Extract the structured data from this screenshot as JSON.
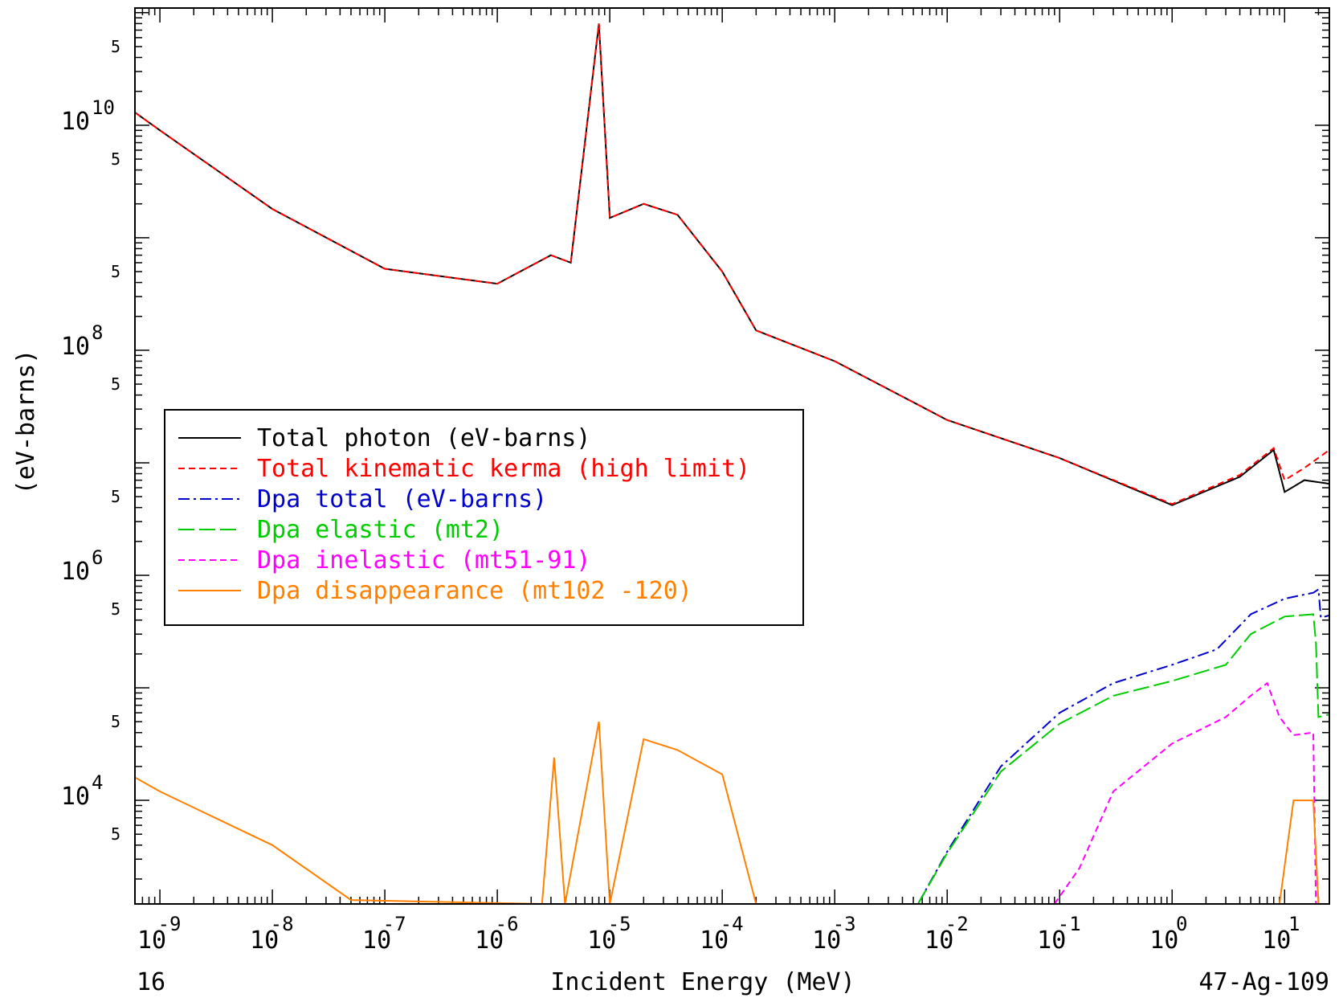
{
  "chart_data": {
    "type": "line",
    "title": "",
    "xlabel": "Incident Energy (MeV)",
    "ylabel": "(eV-barns)",
    "footer_left": "16",
    "footer_right": "47-Ag-109",
    "x_scale": "log",
    "y_scale": "log",
    "xlim": [
      6e-10,
      25
    ],
    "ylim": [
      1200,
      110000000000.0
    ],
    "x_ticks": [
      {
        "base": "10",
        "exp": "-9"
      },
      {
        "base": "10",
        "exp": "-8"
      },
      {
        "base": "10",
        "exp": "-7"
      },
      {
        "base": "10",
        "exp": "-6"
      },
      {
        "base": "10",
        "exp": "-5"
      },
      {
        "base": "10",
        "exp": "-4"
      },
      {
        "base": "10",
        "exp": "-3"
      },
      {
        "base": "10",
        "exp": "-2"
      },
      {
        "base": "10",
        "exp": "-1"
      },
      {
        "base": "10",
        "exp": "0"
      },
      {
        "base": "10",
        "exp": "1"
      }
    ],
    "y_ticks": [
      {
        "base": "10",
        "exp": "10"
      },
      {
        "base": "10",
        "exp": "8"
      },
      {
        "base": "10",
        "exp": "6"
      },
      {
        "base": "10",
        "exp": "4"
      }
    ],
    "y_minor_label": "5",
    "legend_position": "center-left",
    "series": [
      {
        "name": "Total photon (eV-barns)",
        "color": "#000000",
        "dash": "solid",
        "points": [
          [
            6e-10,
            13000000000.0
          ],
          [
            1e-09,
            9000000000.0
          ],
          [
            1e-08,
            1800000000.0
          ],
          [
            1e-07,
            530000000.0
          ],
          [
            1e-06,
            390000000.0
          ],
          [
            3e-06,
            700000000.0
          ],
          [
            4.5e-06,
            600000000.0
          ],
          [
            8e-06,
            80000000000.0
          ],
          [
            1e-05,
            1500000000.0
          ],
          [
            2e-05,
            2000000000.0
          ],
          [
            4e-05,
            1600000000.0
          ],
          [
            0.0001,
            500000000.0
          ],
          [
            0.0002,
            150000000.0
          ],
          [
            0.001,
            80000000.0
          ],
          [
            0.01,
            24000000.0
          ],
          [
            0.1,
            11000000.0
          ],
          [
            1,
            4200000.0
          ],
          [
            4,
            7500000.0
          ],
          [
            8,
            13000000.0
          ],
          [
            10,
            5500000.0
          ],
          [
            15,
            7000000.0
          ],
          [
            25,
            6500000.0
          ]
        ]
      },
      {
        "name": "Total kinematic kerma (high limit)",
        "color": "#ff0000",
        "dash": "dashed",
        "points": [
          [
            6e-10,
            13000000000.0
          ],
          [
            1e-09,
            9000000000.0
          ],
          [
            1e-08,
            1800000000.0
          ],
          [
            1e-07,
            530000000.0
          ],
          [
            1e-06,
            390000000.0
          ],
          [
            3e-06,
            700000000.0
          ],
          [
            4.5e-06,
            600000000.0
          ],
          [
            8e-06,
            80000000000.0
          ],
          [
            1e-05,
            1500000000.0
          ],
          [
            2e-05,
            2000000000.0
          ],
          [
            4e-05,
            1600000000.0
          ],
          [
            0.0001,
            500000000.0
          ],
          [
            0.0002,
            150000000.0
          ],
          [
            0.001,
            80000000.0
          ],
          [
            0.01,
            24000000.0
          ],
          [
            0.1,
            11000000.0
          ],
          [
            1,
            4300000.0
          ],
          [
            4,
            7800000.0
          ],
          [
            8,
            13500000.0
          ],
          [
            10,
            7000000.0
          ],
          [
            15,
            9000000.0
          ],
          [
            25,
            13000000.0
          ]
        ]
      },
      {
        "name": "Dpa total (eV-barns)",
        "color": "#0000cc",
        "dash": "dashdot",
        "points": [
          [
            0.0055,
            1200
          ],
          [
            0.01,
            3500
          ],
          [
            0.03,
            20000.0
          ],
          [
            0.1,
            60000.0
          ],
          [
            0.3,
            110000.0
          ],
          [
            1,
            160000.0
          ],
          [
            2.5,
            220000.0
          ],
          [
            5,
            450000.0
          ],
          [
            10,
            620000.0
          ],
          [
            18,
            700000.0
          ],
          [
            20,
            750000.0
          ],
          [
            21,
            420000.0
          ],
          [
            25,
            440000.0
          ]
        ]
      },
      {
        "name": "Dpa elastic (mt2)",
        "color": "#00cc00",
        "dash": "longdash",
        "points": [
          [
            0.0055,
            1200
          ],
          [
            0.01,
            3400
          ],
          [
            0.03,
            18000.0
          ],
          [
            0.1,
            48000.0
          ],
          [
            0.3,
            85000.0
          ],
          [
            1,
            115000.0
          ],
          [
            3,
            160000.0
          ],
          [
            5,
            300000.0
          ],
          [
            10,
            430000.0
          ],
          [
            18,
            450000.0
          ],
          [
            19,
            250000.0
          ],
          [
            20,
            55000.0
          ],
          [
            25,
            58000.0
          ]
        ]
      },
      {
        "name": "Dpa inelastic (mt51-91)",
        "color": "#ff00ff",
        "dash": "dashed",
        "points": [
          [
            0.09,
            1200
          ],
          [
            0.15,
            2500
          ],
          [
            0.3,
            12000.0
          ],
          [
            1,
            32000.0
          ],
          [
            3,
            55000.0
          ],
          [
            5,
            85000.0
          ],
          [
            7,
            110000.0
          ],
          [
            9,
            55000.0
          ],
          [
            12,
            38000.0
          ],
          [
            18,
            40000.0
          ],
          [
            19,
            1200
          ]
        ]
      },
      {
        "name": "Dpa disappearance (mt102 -120)",
        "color": "#ff8000",
        "dash": "solid",
        "points": [
          [
            6e-10,
            16000.0
          ],
          [
            1e-09,
            12000.0
          ],
          [
            1e-08,
            4000.0
          ],
          [
            5e-08,
            1300.0
          ],
          [
            2.5e-06,
            1200.0
          ],
          [
            3.2e-06,
            24000.0
          ],
          [
            4e-06,
            1200.0
          ],
          [
            8e-06,
            50000.0
          ],
          [
            1e-05,
            1200.0
          ],
          [
            2e-05,
            35000.0
          ],
          [
            4e-05,
            28000.0
          ],
          [
            0.0001,
            17000.0
          ],
          [
            0.0002,
            1200.0
          ],
          [
            9,
            1200.0
          ],
          [
            12,
            10000.0
          ],
          [
            18,
            10000.0
          ],
          [
            20,
            1200
          ]
        ]
      }
    ]
  }
}
